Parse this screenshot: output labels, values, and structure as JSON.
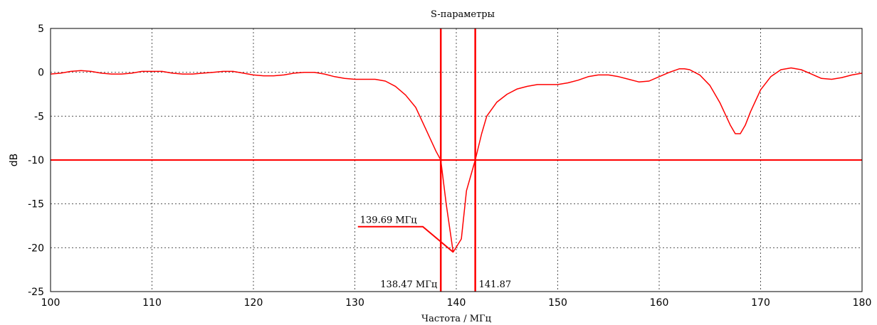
{
  "chart_data": {
    "type": "line",
    "title": "S-параметры",
    "xlabel": "Частота / МГц",
    "ylabel": "dB",
    "xlim": [
      100,
      180
    ],
    "ylim": [
      -25,
      5
    ],
    "x_ticks": [
      100,
      110,
      120,
      130,
      140,
      150,
      160,
      170,
      180
    ],
    "y_ticks": [
      5,
      0,
      -5,
      -10,
      -15,
      -20,
      -25
    ],
    "grid": true,
    "color": "#ff0000",
    "series": [
      {
        "x": [
          100,
          101,
          102,
          103,
          104,
          105,
          106,
          107,
          108,
          109,
          110,
          111,
          112,
          113,
          114,
          115,
          116,
          117,
          118,
          119,
          120,
          121,
          122,
          123,
          124,
          125,
          126,
          127,
          128,
          129,
          130,
          131,
          132,
          133,
          134,
          135,
          136,
          137,
          138,
          138.47,
          139,
          139.69,
          140.5,
          141,
          141.87,
          142.5,
          143,
          144,
          145,
          146,
          147,
          148,
          149,
          150,
          151,
          152,
          153,
          154,
          155,
          156,
          157,
          158,
          159,
          160,
          161,
          162,
          162.5,
          163,
          164,
          165,
          166,
          167,
          167.5,
          168,
          168.5,
          169,
          170,
          171,
          172,
          173,
          174,
          175,
          176,
          177,
          178,
          179,
          180
        ],
        "y": [
          -0.2,
          -0.1,
          0.1,
          0.2,
          0.1,
          -0.1,
          -0.2,
          -0.2,
          -0.1,
          0.1,
          0.1,
          0.1,
          -0.1,
          -0.2,
          -0.2,
          -0.1,
          0.0,
          0.1,
          0.1,
          -0.1,
          -0.3,
          -0.4,
          -0.4,
          -0.3,
          -0.1,
          0.0,
          0.0,
          -0.2,
          -0.5,
          -0.7,
          -0.8,
          -0.8,
          -0.8,
          -1.0,
          -1.6,
          -2.6,
          -4.0,
          -6.5,
          -9.0,
          -10.0,
          -15.0,
          -20.5,
          -19.0,
          -13.5,
          -10.0,
          -7.0,
          -5.0,
          -3.4,
          -2.5,
          -1.9,
          -1.6,
          -1.4,
          -1.4,
          -1.4,
          -1.2,
          -0.9,
          -0.5,
          -0.3,
          -0.3,
          -0.5,
          -0.8,
          -1.1,
          -1.0,
          -0.5,
          0.0,
          0.4,
          0.4,
          0.3,
          -0.3,
          -1.5,
          -3.5,
          -6.0,
          -7.0,
          -7.0,
          -6.0,
          -4.5,
          -2.0,
          -0.5,
          0.3,
          0.5,
          0.3,
          -0.2,
          -0.7,
          -0.8,
          -0.6,
          -0.3,
          -0.1
        ]
      }
    ],
    "reference_line": {
      "y": -10
    },
    "markers": [
      {
        "x": 138.47,
        "label": "138.47 МГц"
      },
      {
        "x": 141.87,
        "label": "141.87"
      }
    ],
    "min_annotation": {
      "x": 139.69,
      "y": -20.5,
      "label": "139.69 МГц"
    }
  }
}
